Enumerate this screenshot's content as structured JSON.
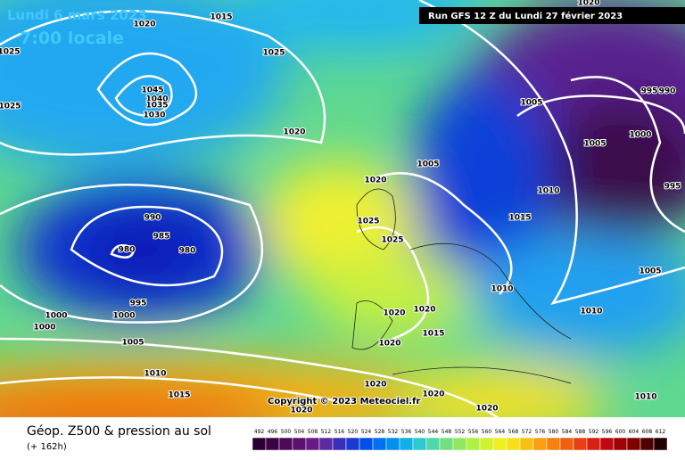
{
  "header": {
    "date": "Lundi 6 mars 2023",
    "time": "7:00 locale",
    "run": "Run GFS 12 Z du Lundi 27 février 2023"
  },
  "footer": {
    "title": "Géop. Z500 & pression au sol",
    "lead": "(+ 162h)",
    "copyright": "Copyright © 2023 Meteociel.fr"
  },
  "isobar_labels": [
    1020,
    1015,
    1025,
    1025,
    1045,
    1040,
    1035,
    1030,
    1025,
    1020,
    1005,
    995,
    990,
    1005,
    1000,
    1005,
    1020,
    1010,
    995,
    1025,
    1015,
    990,
    985,
    980,
    980,
    1025,
    1005,
    1010,
    1010,
    995,
    1000,
    1000,
    1000,
    1020,
    1020,
    1015,
    1005,
    1020,
    1010,
    1015,
    1020,
    1020,
    1020,
    1020,
    1010,
    1020
  ],
  "scale": {
    "values": [
      492,
      496,
      500,
      504,
      508,
      512,
      516,
      520,
      524,
      528,
      532,
      536,
      540,
      544,
      548,
      552,
      556,
      560,
      564,
      568,
      572,
      576,
      580,
      584,
      588,
      592,
      596,
      600,
      604,
      608,
      612
    ],
    "colors": [
      "#2a0030",
      "#3c0044",
      "#4e0858",
      "#5e1070",
      "#6a1a84",
      "#5a2aa0",
      "#3a30b8",
      "#1a3ad0",
      "#0050e8",
      "#0070f0",
      "#0090f0",
      "#10b0e8",
      "#30c8d0",
      "#50d8a8",
      "#70e080",
      "#90e860",
      "#b0f040",
      "#d0f030",
      "#f0f020",
      "#f8e018",
      "#f8c010",
      "#f8a010",
      "#f88010",
      "#f06010",
      "#e84010",
      "#d82010",
      "#c00810",
      "#a00008",
      "#800000",
      "#500000",
      "#200000"
    ]
  }
}
